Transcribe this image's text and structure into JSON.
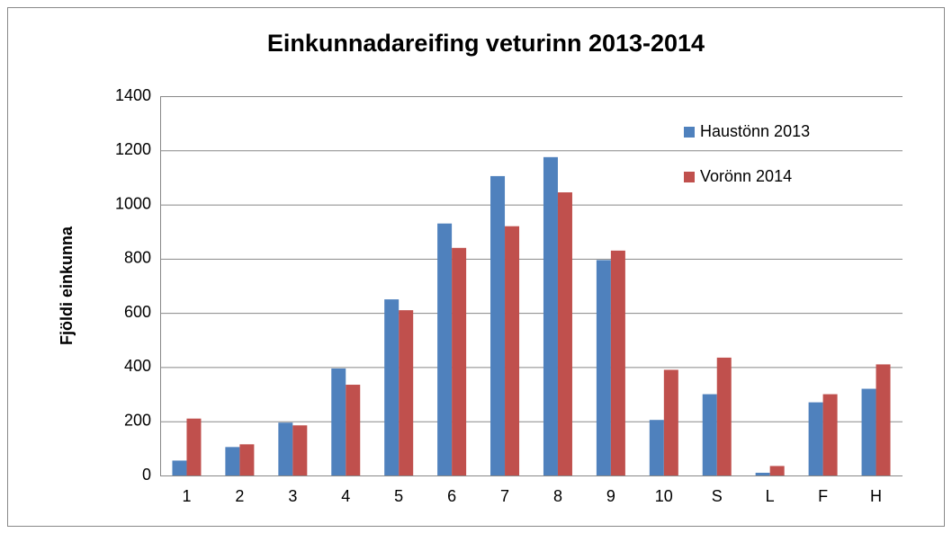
{
  "chart_data": {
    "type": "bar",
    "title": "Einkunnadareifing veturinn 2013-2014",
    "y_label": "Fjöldi einkunna",
    "categories": [
      "1",
      "2",
      "3",
      "4",
      "5",
      "6",
      "7",
      "8",
      "9",
      "10",
      "S",
      "L",
      "F",
      "H"
    ],
    "series": [
      {
        "name": "Haustönn 2013",
        "color": "#4f81bd",
        "values": [
          55,
          105,
          195,
          395,
          650,
          930,
          1105,
          1175,
          795,
          205,
          300,
          10,
          270,
          320
        ]
      },
      {
        "name": "Vorönn 2014",
        "color": "#c0504d",
        "values": [
          210,
          115,
          185,
          335,
          610,
          840,
          920,
          1045,
          830,
          390,
          435,
          35,
          300,
          410
        ]
      }
    ],
    "ylim": [
      0,
      1400
    ],
    "yticks": [
      0,
      200,
      400,
      600,
      800,
      1000,
      1200,
      1400
    ],
    "grid": true,
    "legend": "top-right"
  }
}
